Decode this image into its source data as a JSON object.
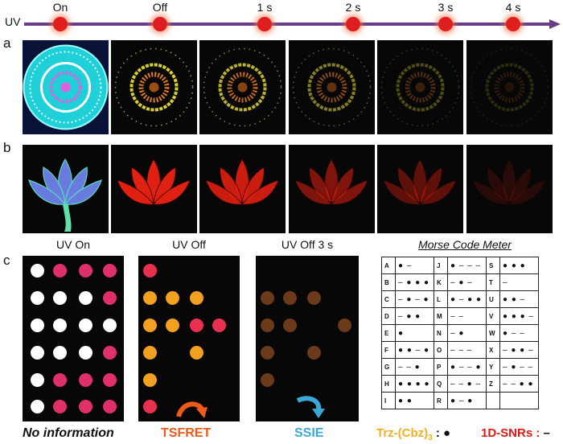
{
  "timeline": {
    "uv_label": "UV",
    "steps": [
      "On",
      "Off",
      "1 s",
      "2 s",
      "3 s",
      "4 s"
    ],
    "colors": {
      "line": "#6a3b86",
      "dot": "#e01e1e"
    }
  },
  "panel_a": {
    "letter": "a",
    "images": [
      {
        "state": "on",
        "colors": {
          "disk": "#1fd0d8",
          "ring": "#ffffff",
          "flower": "#e060e0"
        }
      },
      {
        "state": "off",
        "brightness": 1.0
      },
      {
        "state": "1 s",
        "brightness": 0.85
      },
      {
        "state": "2 s",
        "brightness": 0.6
      },
      {
        "state": "3 s",
        "brightness": 0.35
      },
      {
        "state": "4 s",
        "brightness": 0.18
      }
    ]
  },
  "panel_b": {
    "letter": "b",
    "images": [
      {
        "state": "on",
        "colors": {
          "petals": "#6a7be0",
          "stem": "#5fe0a8"
        }
      },
      {
        "state": "off",
        "brightness": 1.0
      },
      {
        "state": "1 s",
        "brightness": 0.9
      },
      {
        "state": "2 s",
        "brightness": 0.55
      },
      {
        "state": "3 s",
        "brightness": 0.4
      },
      {
        "state": "4 s",
        "brightness": 0.15
      }
    ]
  },
  "panel_c": {
    "letter": "c",
    "titles": [
      "UV On",
      "UV Off",
      "UV Off 3 s"
    ],
    "morse_title": "Morse Code Meter",
    "grid_uv_on": [
      [
        "white",
        "pink",
        "pink",
        "pink"
      ],
      [
        "white",
        "white",
        "white",
        "pink"
      ],
      [
        "white",
        "white",
        "white",
        "white"
      ],
      [
        "white",
        "white",
        "white",
        "pink"
      ],
      [
        "white",
        "pink",
        "pink",
        "pink"
      ],
      [
        "white",
        "pink",
        "pink",
        "pink"
      ]
    ],
    "grid_uv_off": [
      [
        "red",
        "",
        "",
        ""
      ],
      [
        "orange",
        "orange",
        "orange",
        ""
      ],
      [
        "orange",
        "orange",
        "red",
        "red"
      ],
      [
        "orange",
        "",
        "orange",
        ""
      ],
      [
        "orange",
        "",
        "",
        ""
      ],
      [
        "red",
        "",
        "",
        ""
      ]
    ],
    "grid_uv_off3": [
      [
        "",
        "",
        "",
        ""
      ],
      [
        "brown",
        "brown",
        "brown",
        ""
      ],
      [
        "brown",
        "brown",
        "",
        "brown"
      ],
      [
        "brown",
        "",
        "brown",
        ""
      ],
      [
        "brown",
        "",
        "",
        ""
      ],
      [
        "",
        "",
        "",
        ""
      ]
    ],
    "dot_colors": {
      "white": "#ffffff",
      "pink": "#e0306a",
      "red": "#e83050",
      "orange": "#f2a020",
      "brown": "#6a3a1a"
    },
    "morse": [
      [
        [
          "A",
          "● –"
        ],
        [
          "J",
          "● – – –"
        ],
        [
          "S",
          "● ● ●"
        ]
      ],
      [
        [
          "B",
          "– ● ● ●"
        ],
        [
          "K",
          "– ● –"
        ],
        [
          "T",
          "–"
        ]
      ],
      [
        [
          "C",
          "– ● – ●"
        ],
        [
          "L",
          "● – ● ●"
        ],
        [
          "U",
          "● ● –"
        ]
      ],
      [
        [
          "D",
          "– ● ●"
        ],
        [
          "M",
          "– –"
        ],
        [
          "V",
          "● ● ● –"
        ]
      ],
      [
        [
          "E",
          "●"
        ],
        [
          "N",
          "– ●"
        ],
        [
          "W",
          "● – –"
        ]
      ],
      [
        [
          "F",
          "● ● – ●"
        ],
        [
          "O",
          "– – –"
        ],
        [
          "X",
          "– ● ● –"
        ]
      ],
      [
        [
          "G",
          "– – ●"
        ],
        [
          "P",
          "● – – ●"
        ],
        [
          "Y",
          "– ● – –"
        ]
      ],
      [
        [
          "H",
          "● ● ● ●"
        ],
        [
          "Q",
          "– – ● –"
        ],
        [
          "Z",
          "– – ● ●"
        ]
      ],
      [
        [
          "I",
          "● ●"
        ],
        [
          "R",
          "● – ●"
        ],
        [
          "",
          ""
        ]
      ]
    ],
    "bottom": {
      "no_info": "No information",
      "tsfret": "TSFRET",
      "ssie": "SSIE",
      "trz_label": "Trz-(Cbz)",
      "trz_sub": "3",
      "trz_suffix": " : ●",
      "snr_label": "1D-SNRs : ",
      "snr_symbol": "–",
      "colors": {
        "tsfret": "#f05a18",
        "ssie": "#3aa8d8",
        "trz": "#f2b020",
        "snr": "#e01818"
      }
    }
  }
}
